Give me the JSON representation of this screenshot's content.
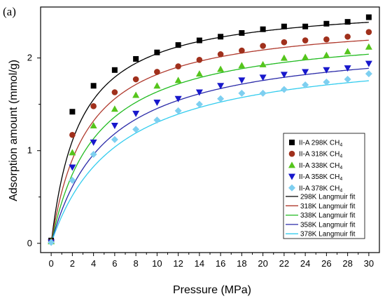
{
  "panel_label": "(a)",
  "chart_data": {
    "type": "scatter",
    "xlabel": "Pressure (MPa)",
    "ylabel": "Adsorption amount (mmol/g)",
    "xlim": [
      -1,
      31
    ],
    "ylim": [
      -0.1,
      2.55
    ],
    "xticks": [
      0,
      2,
      4,
      6,
      8,
      10,
      12,
      14,
      16,
      18,
      20,
      22,
      24,
      26,
      28,
      30
    ],
    "yticks": [
      0,
      1,
      2
    ],
    "grid": false,
    "legend_position": "right",
    "x": [
      0,
      2,
      4,
      6,
      8,
      10,
      12,
      14,
      16,
      18,
      20,
      22,
      24,
      26,
      28,
      30
    ],
    "series": [
      {
        "name": "II-A 298K CH",
        "subscript": "4",
        "marker": "square",
        "color": "#000000",
        "values": [
          0.03,
          1.42,
          1.7,
          1.87,
          1.99,
          2.06,
          2.14,
          2.19,
          2.23,
          2.27,
          2.31,
          2.34,
          2.34,
          2.37,
          2.39,
          2.44
        ]
      },
      {
        "name": "II-A 318K CH",
        "subscript": "4",
        "marker": "circle",
        "color": "#a0301c",
        "values": [
          0.02,
          1.17,
          1.48,
          1.63,
          1.77,
          1.85,
          1.91,
          1.98,
          2.04,
          2.08,
          2.13,
          2.17,
          2.19,
          2.2,
          2.23,
          2.28
        ]
      },
      {
        "name": "II-A 338K CH",
        "subscript": "4",
        "marker": "triangle-up",
        "color": "#55c51c",
        "values": [
          0.02,
          0.98,
          1.27,
          1.45,
          1.6,
          1.7,
          1.76,
          1.83,
          1.88,
          1.92,
          1.93,
          2.0,
          2.01,
          2.03,
          2.07,
          2.12
        ]
      },
      {
        "name": "II-A 358K CH",
        "subscript": "4",
        "marker": "triangle-down",
        "color": "#1818cc",
        "values": [
          0.01,
          0.82,
          1.09,
          1.27,
          1.4,
          1.52,
          1.56,
          1.63,
          1.7,
          1.76,
          1.79,
          1.82,
          1.85,
          1.87,
          1.89,
          1.94
        ]
      },
      {
        "name": "II-A 378K CH",
        "subscript": "4",
        "marker": "diamond",
        "color": "#7ecff0",
        "values": [
          0.01,
          0.68,
          0.96,
          1.12,
          1.23,
          1.33,
          1.43,
          1.5,
          1.56,
          1.62,
          1.62,
          1.66,
          1.71,
          1.74,
          1.77,
          1.83
        ]
      }
    ],
    "fits": [
      {
        "name": "298K Langmuir fit",
        "color": "#000000",
        "q_max": 2.6,
        "b": 0.37
      },
      {
        "name": "318K Langmuir fit",
        "color": "#b03a2e",
        "q_max": 2.44,
        "b": 0.295
      },
      {
        "name": "338K Langmuir fit",
        "color": "#22bb22",
        "q_max": 2.33,
        "b": 0.235
      },
      {
        "name": "358K Langmuir fit",
        "color": "#2a2aa8",
        "q_max": 2.22,
        "b": 0.19
      },
      {
        "name": "378K Langmuir fit",
        "color": "#33ccee",
        "q_max": 2.12,
        "b": 0.16
      }
    ]
  }
}
